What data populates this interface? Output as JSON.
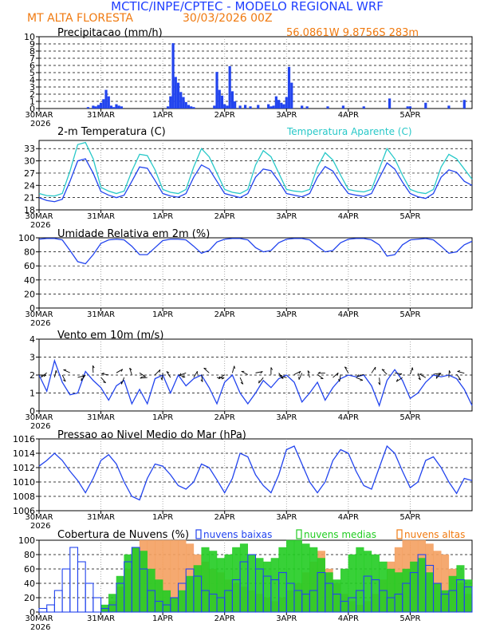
{
  "header": {
    "title": "MCTIC/INPE/CPTEC - MODELO REGIONAL WRF",
    "location": "MT ALTA FLORESTA",
    "run": "30/03/2026 00Z",
    "coords": "56.0861W  9.8756S  283m"
  },
  "colors": {
    "title": "#1f3fff",
    "orange": "#f07a10",
    "cyan": "#28c8c8",
    "blue": "#2244ee",
    "green": "#22cc22",
    "ltorange": "#f4a060"
  },
  "time_axis": {
    "ticks": [
      "30MAR",
      "31MAR",
      "1APR",
      "2APR",
      "3APR",
      "4APR",
      "5APR"
    ],
    "year": "2026",
    "start": 0,
    "end": 168,
    "unit": "hours since 30MAR 00Z"
  },
  "chart_data": [
    {
      "id": "precip",
      "type": "bar",
      "title": "Precipitacao (mm/h)",
      "ylim": [
        0,
        10
      ],
      "yticks": [
        0,
        1,
        2,
        3,
        4,
        5,
        6,
        7,
        8,
        9,
        10
      ],
      "x": [
        19,
        21,
        22,
        23,
        24,
        25,
        26,
        27,
        28,
        29,
        30,
        31,
        32,
        50,
        51,
        52,
        53,
        54,
        55,
        56,
        57,
        58,
        59,
        60,
        68,
        69,
        70,
        71,
        72,
        73,
        74,
        75,
        76,
        78,
        80,
        82,
        85,
        89,
        90,
        91,
        92,
        93,
        94,
        95,
        96,
        97,
        98,
        102,
        104,
        112,
        118,
        126,
        136,
        143,
        144,
        150,
        159,
        165
      ],
      "values": [
        0.2,
        0.4,
        0.3,
        0.5,
        0.8,
        1.3,
        2.6,
        1.7,
        0.4,
        0.2,
        0.6,
        0.4,
        0.3,
        0.3,
        1.7,
        9.1,
        4.4,
        3.6,
        2.3,
        1.6,
        0.9,
        0.5,
        0.3,
        0.2,
        0.4,
        5.1,
        2.6,
        1.8,
        0.6,
        0.4,
        5.9,
        2.4,
        1.0,
        0.4,
        0.5,
        0.3,
        0.5,
        0.6,
        0.3,
        0.4,
        1.7,
        1.2,
        0.8,
        0.6,
        1.6,
        5.8,
        3.6,
        0.4,
        0.3,
        0.3,
        0.4,
        0.3,
        1.4,
        0.3,
        0.3,
        0.8,
        0.4,
        1.2
      ]
    },
    {
      "id": "temp",
      "type": "line",
      "title": "2-m Temperatura (C)",
      "title_right": "Temperatura Aparente (C)",
      "ylim": [
        18,
        35
      ],
      "yticks": [
        18,
        21,
        24,
        27,
        30,
        33
      ],
      "x": [
        0,
        3,
        6,
        9,
        12,
        15,
        18,
        21,
        24,
        27,
        30,
        33,
        36,
        39,
        42,
        45,
        48,
        51,
        54,
        57,
        60,
        63,
        66,
        69,
        72,
        75,
        78,
        81,
        84,
        87,
        90,
        93,
        96,
        99,
        102,
        105,
        108,
        111,
        114,
        117,
        120,
        123,
        126,
        129,
        132,
        135,
        138,
        141,
        144,
        147,
        150,
        153,
        156,
        159,
        162,
        165,
        168
      ],
      "series": [
        {
          "name": "2-m Temperatura",
          "color": "blue",
          "values": [
            21.0,
            20.3,
            20.0,
            20.6,
            25.0,
            30.0,
            30.5,
            27.0,
            22.5,
            21.6,
            21.0,
            21.6,
            25.0,
            28.5,
            28.2,
            25.2,
            22.0,
            21.4,
            21.1,
            22.0,
            26.0,
            29.0,
            28.0,
            25.0,
            22.0,
            21.5,
            21.0,
            22.0,
            26.0,
            28.0,
            27.6,
            25.0,
            22.0,
            21.6,
            21.2,
            22.0,
            26.0,
            28.6,
            27.5,
            24.5,
            22.0,
            21.6,
            21.3,
            22.0,
            25.8,
            29.5,
            28.0,
            24.8,
            22.0,
            21.2,
            20.8,
            22.0,
            26.0,
            27.8,
            27.2,
            25.0,
            24.0
          ]
        },
        {
          "name": "Temperatura Aparente",
          "color": "cyan",
          "values": [
            22.0,
            21.5,
            21.4,
            22.0,
            27.5,
            34.0,
            34.5,
            30.5,
            23.5,
            22.6,
            22.0,
            22.6,
            27.5,
            31.6,
            31.3,
            27.8,
            23.0,
            22.3,
            22.0,
            23.0,
            28.5,
            33.0,
            31.0,
            27.0,
            23.0,
            22.3,
            22.0,
            23.0,
            29.0,
            32.5,
            31.0,
            27.0,
            23.0,
            22.6,
            22.4,
            23.0,
            28.5,
            32.0,
            30.2,
            26.5,
            23.0,
            22.6,
            22.4,
            23.0,
            28.0,
            33.0,
            30.5,
            26.5,
            23.0,
            22.3,
            22.0,
            23.0,
            28.5,
            31.6,
            30.5,
            28.0,
            25.5
          ]
        }
      ]
    },
    {
      "id": "umidade",
      "type": "line",
      "title": "Umidade Relativa em 2m (%)",
      "ylim": [
        0,
        100
      ],
      "yticks": [
        0,
        20,
        40,
        60,
        80,
        100
      ],
      "x": [
        0,
        3,
        6,
        9,
        12,
        15,
        18,
        21,
        24,
        27,
        30,
        33,
        36,
        39,
        42,
        45,
        48,
        51,
        54,
        57,
        60,
        63,
        66,
        69,
        72,
        75,
        78,
        81,
        84,
        87,
        90,
        93,
        96,
        99,
        102,
        105,
        108,
        111,
        114,
        117,
        120,
        123,
        126,
        129,
        132,
        135,
        138,
        141,
        144,
        147,
        150,
        153,
        156,
        159,
        162,
        165,
        168
      ],
      "values": [
        98,
        99,
        99,
        97,
        82,
        66,
        63,
        76,
        92,
        97,
        98,
        97,
        88,
        76,
        76,
        86,
        96,
        98,
        98,
        97,
        88,
        78,
        82,
        94,
        98,
        99,
        99,
        97,
        86,
        80,
        82,
        93,
        98,
        99,
        99,
        97,
        88,
        80,
        82,
        93,
        98,
        99,
        99,
        97,
        90,
        74,
        76,
        90,
        97,
        98,
        99,
        97,
        88,
        78,
        80,
        90,
        95
      ]
    },
    {
      "id": "vento",
      "type": "line",
      "title": "Vento em 10m (m/s)",
      "ylim": [
        0,
        4
      ],
      "yticks": [
        0,
        1,
        2,
        3,
        4
      ],
      "x": [
        0,
        3,
        6,
        9,
        12,
        15,
        18,
        21,
        24,
        27,
        30,
        33,
        36,
        39,
        42,
        45,
        48,
        51,
        54,
        57,
        60,
        63,
        66,
        69,
        72,
        75,
        78,
        81,
        84,
        87,
        90,
        93,
        96,
        99,
        102,
        105,
        108,
        111,
        114,
        117,
        120,
        123,
        126,
        129,
        132,
        135,
        138,
        141,
        144,
        147,
        150,
        153,
        156,
        159,
        162,
        165,
        168
      ],
      "values": [
        2.0,
        1.1,
        2.8,
        1.6,
        0.9,
        1.0,
        2.2,
        1.7,
        1.3,
        0.6,
        1.4,
        1.7,
        0.4,
        1.2,
        0.4,
        1.8,
        2.0,
        1.0,
        2.0,
        1.4,
        1.8,
        2.0,
        1.3,
        0.4,
        1.6,
        2.0,
        1.0,
        0.4,
        1.0,
        1.7,
        1.3,
        1.8,
        2.0,
        1.6,
        0.5,
        1.0,
        1.6,
        0.6,
        1.3,
        1.8,
        2.0,
        1.9,
        2.0,
        1.4,
        0.3,
        1.7,
        2.3,
        1.7,
        0.7,
        1.0,
        1.6,
        2.0,
        1.9,
        2.0,
        1.8,
        1.2,
        0.3
      ]
    },
    {
      "id": "pressao",
      "type": "line",
      "title": "Pressao ao Nivel Medio do Mar (hPa)",
      "ylim": [
        1006,
        1016
      ],
      "yticks": [
        1006,
        1008,
        1010,
        1012,
        1014,
        1016
      ],
      "x": [
        0,
        3,
        6,
        9,
        12,
        15,
        18,
        21,
        24,
        27,
        30,
        33,
        36,
        39,
        42,
        45,
        48,
        51,
        54,
        57,
        60,
        63,
        66,
        69,
        72,
        75,
        78,
        81,
        84,
        87,
        90,
        93,
        96,
        99,
        102,
        105,
        108,
        111,
        114,
        117,
        120,
        123,
        126,
        129,
        132,
        135,
        138,
        141,
        144,
        147,
        150,
        153,
        156,
        159,
        162,
        165,
        168
      ],
      "values": [
        1012.2,
        1013.0,
        1014.0,
        1013.0,
        1011.5,
        1010.2,
        1008.5,
        1010.5,
        1013.0,
        1013.8,
        1012.5,
        1010.0,
        1008.0,
        1007.5,
        1010.5,
        1012.5,
        1012.2,
        1011.0,
        1009.5,
        1009.0,
        1010.0,
        1012.5,
        1012.0,
        1010.3,
        1008.5,
        1010.5,
        1014.0,
        1013.5,
        1011.0,
        1009.5,
        1008.5,
        1011.0,
        1014.5,
        1015.0,
        1012.5,
        1010.0,
        1008.5,
        1010.0,
        1013.0,
        1014.5,
        1014.0,
        1011.5,
        1009.5,
        1009.0,
        1012.0,
        1015.0,
        1014.0,
        1011.5,
        1009.2,
        1010.0,
        1013.0,
        1013.5,
        1012.0,
        1010.0,
        1008.4,
        1010.5,
        1010.2
      ]
    },
    {
      "id": "nuvens",
      "type": "bar",
      "title": "Cobertura de Nuvens (%)",
      "legend": [
        "nuvens baixas",
        "nuvens medias",
        "nuvens altas"
      ],
      "ylim": [
        0,
        100
      ],
      "yticks": [
        0,
        20,
        40,
        60,
        80,
        100
      ],
      "x": [
        0,
        3,
        6,
        9,
        12,
        15,
        18,
        21,
        24,
        27,
        30,
        33,
        36,
        39,
        42,
        45,
        48,
        51,
        54,
        57,
        60,
        63,
        66,
        69,
        72,
        75,
        78,
        81,
        84,
        87,
        90,
        93,
        96,
        99,
        102,
        105,
        108,
        111,
        114,
        117,
        120,
        123,
        126,
        129,
        132,
        135,
        138,
        141,
        144,
        147,
        150,
        153,
        156,
        159,
        162,
        165
      ],
      "series": [
        {
          "name": "nuvens altas",
          "color": "ltorange",
          "values": [
            0,
            0,
            0,
            0,
            0,
            0,
            0,
            0,
            5,
            15,
            35,
            60,
            90,
            100,
            100,
            100,
            100,
            100,
            100,
            95,
            80,
            70,
            60,
            55,
            45,
            40,
            35,
            30,
            25,
            20,
            15,
            20,
            30,
            40,
            55,
            70,
            85,
            60,
            40,
            25,
            15,
            10,
            15,
            25,
            45,
            70,
            90,
            100,
            100,
            100,
            95,
            85,
            80,
            60,
            40,
            25
          ]
        },
        {
          "name": "nuvens medias",
          "color": "green",
          "values": [
            0,
            0,
            0,
            0,
            0,
            0,
            0,
            0,
            10,
            25,
            50,
            80,
            90,
            85,
            60,
            45,
            30,
            20,
            30,
            50,
            65,
            90,
            85,
            75,
            80,
            90,
            95,
            80,
            75,
            70,
            75,
            90,
            100,
            100,
            95,
            90,
            75,
            55,
            45,
            60,
            80,
            90,
            85,
            80,
            70,
            60,
            55,
            60,
            70,
            75,
            55,
            40,
            30,
            50,
            65,
            45
          ]
        },
        {
          "name": "nuvens baixas",
          "color": "blue",
          "values": [
            5,
            10,
            30,
            60,
            90,
            70,
            40,
            20,
            5,
            10,
            40,
            70,
            90,
            60,
            30,
            15,
            10,
            20,
            40,
            60,
            50,
            30,
            25,
            20,
            30,
            45,
            70,
            80,
            60,
            50,
            45,
            55,
            40,
            30,
            25,
            30,
            55,
            40,
            25,
            15,
            20,
            30,
            50,
            45,
            30,
            20,
            25,
            40,
            55,
            80,
            65,
            40,
            25,
            30,
            45,
            35
          ]
        }
      ]
    }
  ]
}
